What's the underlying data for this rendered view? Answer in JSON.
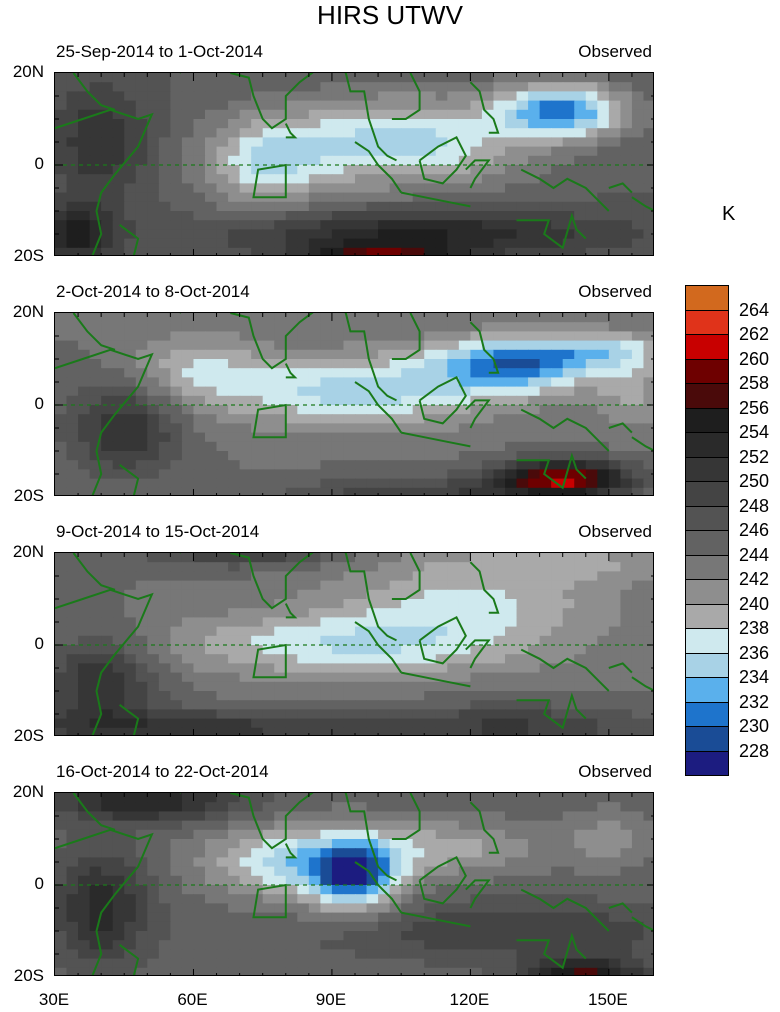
{
  "title": "HIRS UTWV",
  "unit": "K",
  "chart_data": {
    "type": "heatmap",
    "title": "HIRS UTWV",
    "variable_unit": "K",
    "x_axis": {
      "range": [
        30,
        160
      ],
      "tick_values": [
        30,
        60,
        90,
        120,
        150
      ],
      "tick_labels": [
        "30E",
        "60E",
        "90E",
        "120E",
        "150E"
      ]
    },
    "y_axis": {
      "range": [
        -20,
        20
      ],
      "tick_values": [
        20,
        0,
        -20
      ],
      "tick_labels": [
        "20N",
        "0",
        "20S"
      ]
    },
    "colorbar": {
      "levels": [
        264,
        262,
        260,
        258,
        256,
        254,
        252,
        250,
        248,
        246,
        244,
        242,
        240,
        238,
        236,
        234,
        232,
        230,
        228
      ],
      "level_labels": [
        "264",
        "262",
        "260",
        "258",
        "256",
        "254",
        "252",
        "250",
        "248",
        "246",
        "244",
        "242",
        "240",
        "238",
        "236",
        "234",
        "232",
        "230",
        "228"
      ],
      "colors": [
        "#d2691e",
        "#e0331a",
        "#c80000",
        "#6e0000",
        "#4a0a0a",
        "#1e1e1e",
        "#2a2a2a",
        "#363636",
        "#444444",
        "#535353",
        "#626262",
        "#777777",
        "#8e8e8e",
        "#a9a9a9",
        "#cfe9ee",
        "#a8d2e6",
        "#5ab0ec",
        "#1e74cc",
        "#1a4c96",
        "#1c1c80"
      ]
    },
    "panels": [
      {
        "period": "25-Sep-2014 to 1-Oct-2014",
        "tag": "Observed",
        "min_feature": "blue maximum near 140E 10N (~231 K)",
        "max_feature": "red maximum near 100E 20S (~262 K)"
      },
      {
        "period": "2-Oct-2014 to 8-Oct-2014",
        "tag": "Observed",
        "min_feature": "blue maximum near 130E 10N (~231 K)",
        "max_feature": "red maximum near 140E 15S (~262 K)"
      },
      {
        "period": "9-Oct-2014 to 15-Oct-2014",
        "tag": "Observed",
        "min_feature": "light blue band near equator 60-130E (~235 K)",
        "max_feature": "dark gray bands near 20S (~254 K)"
      },
      {
        "period": "16-Oct-2014 to 22-Oct-2014",
        "tag": "Observed",
        "min_feature": "blue maximum near 95E 0-10N (~230 K)",
        "max_feature": "dark red near 145E 20S (~258 K)"
      }
    ]
  }
}
